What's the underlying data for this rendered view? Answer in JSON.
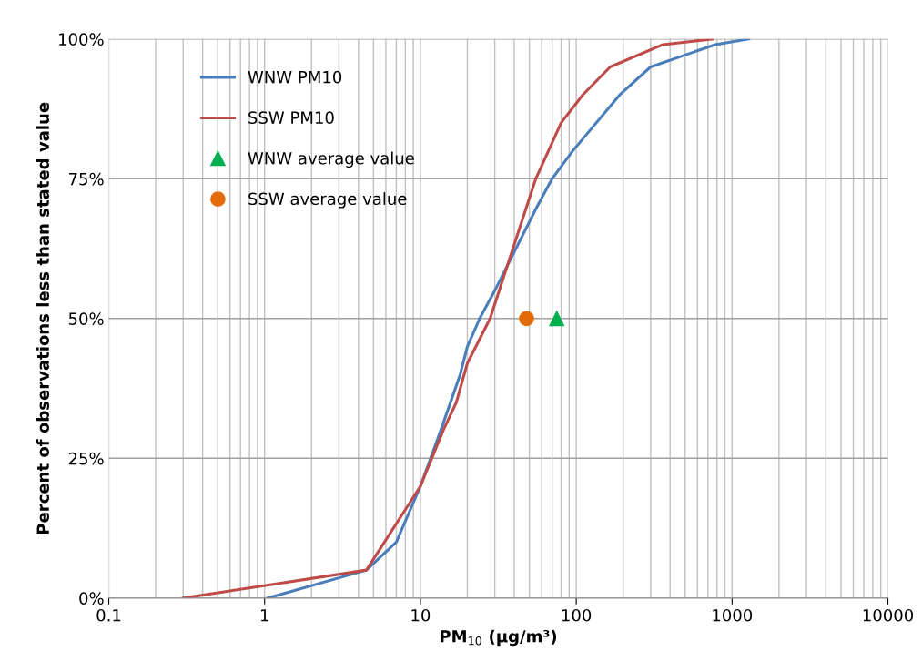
{
  "chart_data": {
    "type": "line",
    "xlabel": "PM$_{10}$ (µg/m³)",
    "ylabel": "Percent of observations less than stated value",
    "log": "x",
    "xlim": [
      0.1,
      10000
    ],
    "xticks": [
      0.1,
      1,
      10,
      100,
      1000,
      10000
    ],
    "ylim": [
      0,
      100
    ],
    "yticks": [
      {
        "value": 0,
        "label": "0%"
      },
      {
        "value": 25,
        "label": "25%"
      },
      {
        "value": 50,
        "label": "50%"
      },
      {
        "value": 75,
        "label": "75%"
      },
      {
        "value": 100,
        "label": "100%"
      }
    ],
    "grid": true,
    "legend": "top left",
    "series": [
      {
        "name": "WNW PM10",
        "color": "#4a7ebb",
        "x": [
          1.05,
          4.5,
          7,
          10,
          13.5,
          18,
          20,
          24,
          30,
          56,
          70,
          95,
          190,
          300,
          780,
          1280
        ],
        "values": [
          0,
          5,
          10,
          20,
          30,
          40,
          45,
          50,
          55,
          70,
          75,
          80,
          90,
          95,
          99,
          100
        ]
      },
      {
        "name": "SSW PM10",
        "color": "#be4b48",
        "x": [
          0.3,
          4.5,
          10,
          14,
          17,
          20,
          28,
          48,
          55,
          80,
          110,
          165,
          360,
          750
        ],
        "values": [
          0,
          5,
          20,
          30,
          35,
          42,
          50,
          70,
          75,
          85,
          90,
          95,
          99,
          100
        ]
      },
      {
        "name": "WNW average value",
        "type": "scatter",
        "marker": "triangle",
        "color": "#00b050",
        "x": [
          75
        ],
        "values": [
          50
        ]
      },
      {
        "name": "SSW average value",
        "type": "scatter",
        "marker": "circle",
        "color": "#e36c09",
        "x": [
          48
        ],
        "values": [
          50
        ]
      }
    ]
  }
}
